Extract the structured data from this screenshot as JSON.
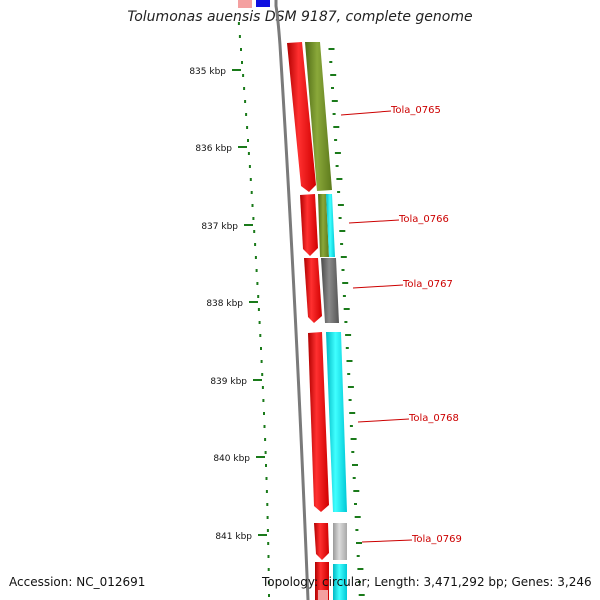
{
  "title": "Tolumonas auensis DSM 9187, complete genome",
  "scale_labels": [
    "835 kbp",
    "836 kbp",
    "837 kbp",
    "838 kbp",
    "839 kbp",
    "840 kbp",
    "841 kbp"
  ],
  "genes": [
    {
      "label": "Tola_0765"
    },
    {
      "label": "Tola_0766"
    },
    {
      "label": "Tola_0767"
    },
    {
      "label": "Tola_0768"
    },
    {
      "label": "Tola_0769"
    }
  ],
  "footer": {
    "accession": "Accession: NC_012691",
    "topology": "Topology: circular; Length: 3,471,292 bp; Genes: 3,246"
  },
  "colors": {
    "red": "#ff1010",
    "olive": "#6b8e23",
    "cyan": "#00e5ee",
    "gray": "#6e6e6e",
    "lightgray": "#bdbdbd",
    "label": "#cc0000",
    "tick": "#1a7a1a"
  }
}
